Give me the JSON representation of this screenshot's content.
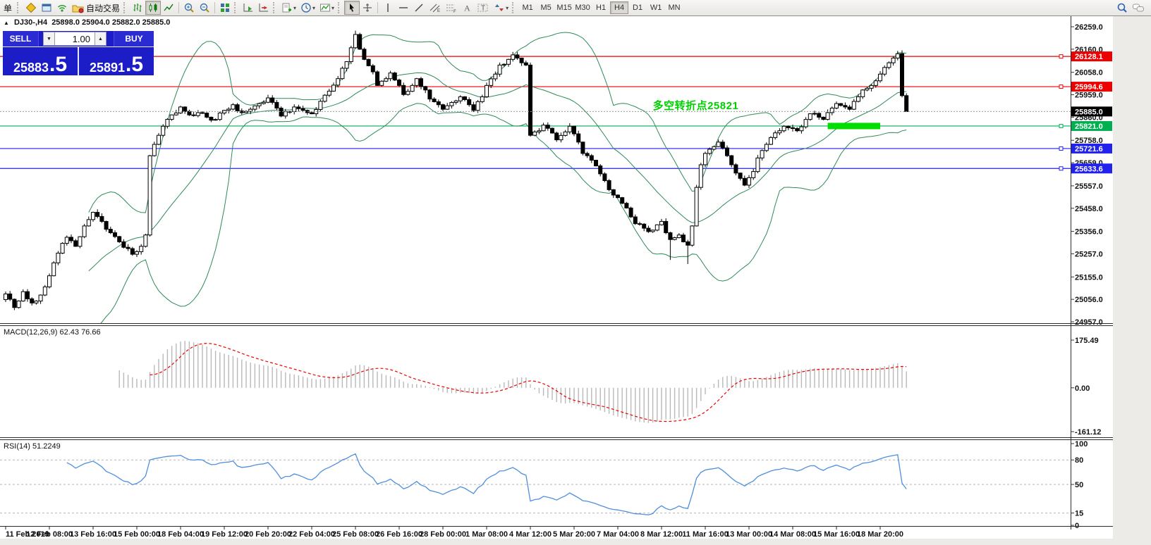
{
  "toolbar": {
    "new_order_label": "单",
    "autotrade_label": "自动交易",
    "timeframes": [
      "M1",
      "M5",
      "M15",
      "M30",
      "H1",
      "H4",
      "D1",
      "W1",
      "MN"
    ],
    "active_timeframe": "H4",
    "icon_names": [
      "new-order",
      "chart-profile",
      "data-window",
      "signal",
      "autotrading-folder",
      "bar-chart",
      "candlestick-chart",
      "line-chart",
      "zoom-in",
      "zoom-out",
      "tile-windows",
      "auto-scroll",
      "chart-shift",
      "new-chart",
      "periods-clock",
      "templates",
      "cursor",
      "crosshair",
      "vertical-line",
      "horizontal-line",
      "trendline",
      "equidistant-channel",
      "fibonacci",
      "text",
      "text-label",
      "arrow-objects",
      "search",
      "chat"
    ]
  },
  "chart_header": {
    "collapse_icon": "▲",
    "title": "DJ30-,H4",
    "ohlc": "25898.0 25904.0 25882.0 25885.0"
  },
  "trade_panel": {
    "sell_label": "SELL",
    "buy_label": "BUY",
    "volume": "1.00",
    "spin_down": "▼",
    "spin_up": "▲",
    "sell_price_int": "25883",
    "sell_price_frac": ".5",
    "buy_price_int": "25891",
    "buy_price_frac": ".5",
    "panel_color": "#1d1dc8"
  },
  "annotation": {
    "text": "多空转折点25821",
    "color": "#00cf00",
    "at_index": 148,
    "at_price": 25902
  },
  "chart_data": {
    "type": "candlestick",
    "symbol": "DJ30-",
    "timeframe": "H4",
    "last_price": 25885.0,
    "ylim": [
      24957.0,
      26259.0
    ],
    "y_axis_ticks": [
      26259.0,
      26160.0,
      26058.0,
      25959.0,
      25860.0,
      25758.0,
      25659.0,
      25557.0,
      25458.0,
      25356.0,
      25257.0,
      25155.0,
      25056.0,
      24957.0
    ],
    "x_axis_labels": [
      "11 Feb 2019",
      "12 Feb 08:00",
      "13 Feb 16:00",
      "15 Feb 00:00",
      "18 Feb 04:00",
      "19 Feb 12:00",
      "20 Feb 20:00",
      "22 Feb 04:00",
      "25 Feb 08:00",
      "26 Feb 16:00",
      "28 Feb 00:00",
      "1 Mar 08:00",
      "4 Mar 12:00",
      "5 Mar 20:00",
      "7 Mar 04:00",
      "8 Mar 12:00",
      "11 Mar 16:00",
      "13 Mar 00:00",
      "14 Mar 08:00",
      "15 Mar 16:00",
      "18 Mar 20:00"
    ],
    "hlines": [
      {
        "price": 26128.1,
        "label": "26128.1",
        "color": "#ee0000"
      },
      {
        "price": 25994.6,
        "label": "25994.6",
        "color": "#ee0000"
      },
      {
        "price": 25821.0,
        "label": "25821.0",
        "color": "#00b050"
      },
      {
        "price": 25721.6,
        "label": "25721.6",
        "color": "#2222ee"
      },
      {
        "price": 25633.6,
        "label": "25633.6",
        "color": "#2222ee"
      }
    ],
    "current_price_label": "25885.0",
    "candles": {
      "count": 207,
      "seed": 11,
      "noise": 10,
      "wick": 12,
      "waypoints": [
        [
          0,
          25080
        ],
        [
          2,
          25020
        ],
        [
          4,
          25090
        ],
        [
          6,
          25040
        ],
        [
          8,
          25075
        ],
        [
          10,
          25160
        ],
        [
          12,
          25260
        ],
        [
          14,
          25330
        ],
        [
          16,
          25290
        ],
        [
          18,
          25380
        ],
        [
          20,
          25440
        ],
        [
          22,
          25400
        ],
        [
          24,
          25350
        ],
        [
          26,
          25310
        ],
        [
          28,
          25280
        ],
        [
          29,
          25255
        ],
        [
          31,
          25290
        ],
        [
          32,
          25340
        ],
        [
          33,
          25690
        ],
        [
          34,
          25740
        ],
        [
          36,
          25820
        ],
        [
          38,
          25870
        ],
        [
          40,
          25905
        ],
        [
          42,
          25870
        ],
        [
          44,
          25880
        ],
        [
          46,
          25860
        ],
        [
          48,
          25850
        ],
        [
          50,
          25890
        ],
        [
          52,
          25915
        ],
        [
          54,
          25880
        ],
        [
          56,
          25895
        ],
        [
          58,
          25920
        ],
        [
          60,
          25945
        ],
        [
          62,
          25900
        ],
        [
          63,
          25865
        ],
        [
          65,
          25885
        ],
        [
          66,
          25905
        ],
        [
          68,
          25890
        ],
        [
          70,
          25875
        ],
        [
          72,
          25930
        ],
        [
          74,
          25975
        ],
        [
          76,
          26030
        ],
        [
          78,
          26105
        ],
        [
          80,
          26225
        ],
        [
          81,
          26160
        ],
        [
          82,
          26115
        ],
        [
          84,
          26060
        ],
        [
          85,
          26000
        ],
        [
          87,
          26030
        ],
        [
          88,
          26055
        ],
        [
          90,
          26000
        ],
        [
          91,
          25960
        ],
        [
          93,
          26000
        ],
        [
          94,
          26030
        ],
        [
          96,
          25980
        ],
        [
          97,
          25940
        ],
        [
          99,
          25915
        ],
        [
          100,
          25895
        ],
        [
          102,
          25925
        ],
        [
          104,
          25950
        ],
        [
          106,
          25915
        ],
        [
          107,
          25890
        ],
        [
          109,
          25950
        ],
        [
          110,
          26000
        ],
        [
          112,
          26050
        ],
        [
          113,
          26090
        ],
        [
          115,
          26115
        ],
        [
          116,
          26135
        ],
        [
          118,
          26100
        ],
        [
          119,
          26090
        ],
        [
          120,
          25780
        ],
        [
          122,
          25800
        ],
        [
          123,
          25825
        ],
        [
          125,
          25790
        ],
        [
          126,
          25760
        ],
        [
          128,
          25795
        ],
        [
          129,
          25820
        ],
        [
          131,
          25750
        ],
        [
          132,
          25700
        ],
        [
          134,
          25670
        ],
        [
          135,
          25645
        ],
        [
          137,
          25580
        ],
        [
          138,
          25540
        ],
        [
          140,
          25505
        ],
        [
          141,
          25480
        ],
        [
          143,
          25420
        ],
        [
          144,
          25390
        ],
        [
          146,
          25370
        ],
        [
          147,
          25355
        ],
        [
          149,
          25385
        ],
        [
          150,
          25400
        ],
        [
          151,
          25350
        ],
        [
          152,
          25320
        ],
        [
          154,
          25340
        ],
        [
          155,
          25310
        ],
        [
          156,
          25295
        ],
        [
          157,
          25380
        ],
        [
          158,
          25550
        ],
        [
          159,
          25650
        ],
        [
          160,
          25700
        ],
        [
          162,
          25730
        ],
        [
          163,
          25750
        ],
        [
          165,
          25690
        ],
        [
          166,
          25650
        ],
        [
          168,
          25590
        ],
        [
          169,
          25560
        ],
        [
          171,
          25620
        ],
        [
          172,
          25680
        ],
        [
          174,
          25740
        ],
        [
          175,
          25770
        ],
        [
          177,
          25800
        ],
        [
          178,
          25820
        ],
        [
          180,
          25810
        ],
        [
          181,
          25800
        ],
        [
          183,
          25850
        ],
        [
          184,
          25875
        ],
        [
          186,
          25860
        ],
        [
          187,
          25850
        ],
        [
          189,
          25900
        ],
        [
          190,
          25920
        ],
        [
          192,
          25905
        ],
        [
          193,
          25895
        ],
        [
          195,
          25950
        ],
        [
          196,
          25980
        ],
        [
          198,
          26000
        ],
        [
          200,
          26050
        ],
        [
          202,
          26100
        ],
        [
          204,
          26140
        ],
        [
          205,
          25955
        ],
        [
          206,
          25885
        ]
      ],
      "overrides": {
        "80": {
          "high": 26242
        },
        "152": {
          "low": 25230
        },
        "156": {
          "low": 25212
        },
        "205": {
          "high": 26155
        }
      }
    },
    "bollinger": {
      "period": 20,
      "deviation": 2,
      "color": "#2e8b57"
    },
    "macd": {
      "label": "MACD(12,26,9)",
      "value_text": "62.43 76.66",
      "axis_ticks": [
        "175.49",
        "0.00",
        "-161.12"
      ],
      "histogram_color": "#b9b9b9",
      "signal_color": "#ee0000"
    },
    "rsi": {
      "label": "RSI(14)",
      "value_text": "51.2249",
      "axis_ticks": [
        "100",
        "80",
        "50",
        "15",
        "0"
      ],
      "levels": [
        80,
        50,
        15
      ],
      "color": "#4f8fdd"
    },
    "highlight": {
      "price": 25821.0,
      "from_index": 188,
      "to_index": 200,
      "color": "#00dd00"
    }
  }
}
